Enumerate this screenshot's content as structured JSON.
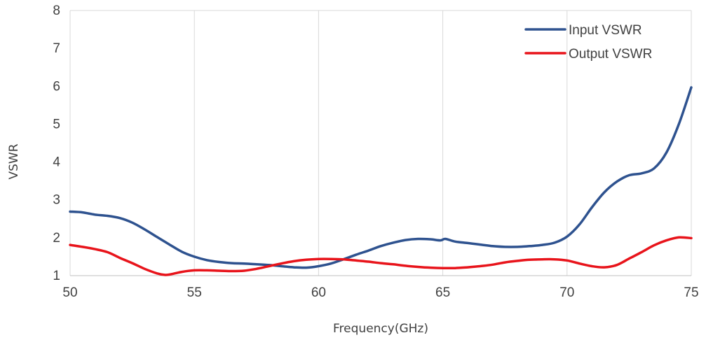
{
  "chart_data": {
    "type": "line",
    "title": "",
    "xlabel": "Frequency(GHz)",
    "ylabel": "VSWR",
    "xlim": [
      50,
      75
    ],
    "ylim": [
      1,
      8
    ],
    "xticks": [
      50,
      55,
      60,
      65,
      70,
      75
    ],
    "yticks": [
      1,
      2,
      3,
      4,
      5,
      6,
      7,
      8
    ],
    "grid": "vertical",
    "legend_position": "top-right",
    "series": [
      {
        "name": "Input VSWR",
        "color": "#2E528F",
        "points": [
          [
            50,
            2.69
          ],
          [
            50.5,
            2.67
          ],
          [
            51,
            2.61
          ],
          [
            51.5,
            2.58
          ],
          [
            52,
            2.52
          ],
          [
            52.5,
            2.4
          ],
          [
            53,
            2.22
          ],
          [
            53.5,
            2.02
          ],
          [
            54,
            1.82
          ],
          [
            54.5,
            1.63
          ],
          [
            55,
            1.5
          ],
          [
            55.5,
            1.41
          ],
          [
            56,
            1.36
          ],
          [
            56.5,
            1.33
          ],
          [
            57,
            1.32
          ],
          [
            57.5,
            1.3
          ],
          [
            58,
            1.28
          ],
          [
            58.5,
            1.25
          ],
          [
            59,
            1.22
          ],
          [
            59.5,
            1.21
          ],
          [
            60,
            1.25
          ],
          [
            60.5,
            1.32
          ],
          [
            61,
            1.43
          ],
          [
            61.5,
            1.55
          ],
          [
            62,
            1.66
          ],
          [
            62.5,
            1.78
          ],
          [
            63,
            1.87
          ],
          [
            63.5,
            1.94
          ],
          [
            64,
            1.97
          ],
          [
            64.5,
            1.96
          ],
          [
            64.9,
            1.93
          ],
          [
            65.1,
            1.97
          ],
          [
            65.5,
            1.9
          ],
          [
            66,
            1.86
          ],
          [
            66.5,
            1.82
          ],
          [
            67,
            1.78
          ],
          [
            67.5,
            1.76
          ],
          [
            68,
            1.76
          ],
          [
            68.5,
            1.78
          ],
          [
            69,
            1.81
          ],
          [
            69.5,
            1.87
          ],
          [
            70,
            2.03
          ],
          [
            70.5,
            2.35
          ],
          [
            71,
            2.8
          ],
          [
            71.5,
            3.2
          ],
          [
            72,
            3.48
          ],
          [
            72.5,
            3.65
          ],
          [
            73,
            3.7
          ],
          [
            73.5,
            3.83
          ],
          [
            74,
            4.25
          ],
          [
            74.5,
            5.0
          ],
          [
            75,
            5.97
          ]
        ]
      },
      {
        "name": "Output VSWR",
        "color": "#E8141B",
        "points": [
          [
            50,
            1.81
          ],
          [
            50.5,
            1.76
          ],
          [
            51,
            1.7
          ],
          [
            51.5,
            1.62
          ],
          [
            52,
            1.47
          ],
          [
            52.5,
            1.33
          ],
          [
            53,
            1.18
          ],
          [
            53.5,
            1.06
          ],
          [
            53.8,
            1.02
          ],
          [
            54,
            1.03
          ],
          [
            54.5,
            1.1
          ],
          [
            55,
            1.14
          ],
          [
            55.5,
            1.14
          ],
          [
            56,
            1.13
          ],
          [
            56.5,
            1.12
          ],
          [
            57,
            1.13
          ],
          [
            57.5,
            1.18
          ],
          [
            58,
            1.25
          ],
          [
            58.5,
            1.32
          ],
          [
            59,
            1.38
          ],
          [
            59.5,
            1.42
          ],
          [
            60,
            1.44
          ],
          [
            60.5,
            1.44
          ],
          [
            61,
            1.43
          ],
          [
            61.5,
            1.4
          ],
          [
            62,
            1.37
          ],
          [
            62.5,
            1.33
          ],
          [
            63,
            1.3
          ],
          [
            63.5,
            1.26
          ],
          [
            64,
            1.23
          ],
          [
            64.5,
            1.21
          ],
          [
            65,
            1.2
          ],
          [
            65.5,
            1.2
          ],
          [
            66,
            1.22
          ],
          [
            66.5,
            1.25
          ],
          [
            67,
            1.29
          ],
          [
            67.5,
            1.35
          ],
          [
            68,
            1.39
          ],
          [
            68.5,
            1.42
          ],
          [
            69,
            1.43
          ],
          [
            69.5,
            1.43
          ],
          [
            70,
            1.4
          ],
          [
            70.5,
            1.32
          ],
          [
            71,
            1.25
          ],
          [
            71.5,
            1.22
          ],
          [
            72,
            1.28
          ],
          [
            72.5,
            1.45
          ],
          [
            73,
            1.62
          ],
          [
            73.5,
            1.8
          ],
          [
            74,
            1.93
          ],
          [
            74.5,
            2.01
          ],
          [
            75,
            1.99
          ]
        ]
      }
    ]
  }
}
